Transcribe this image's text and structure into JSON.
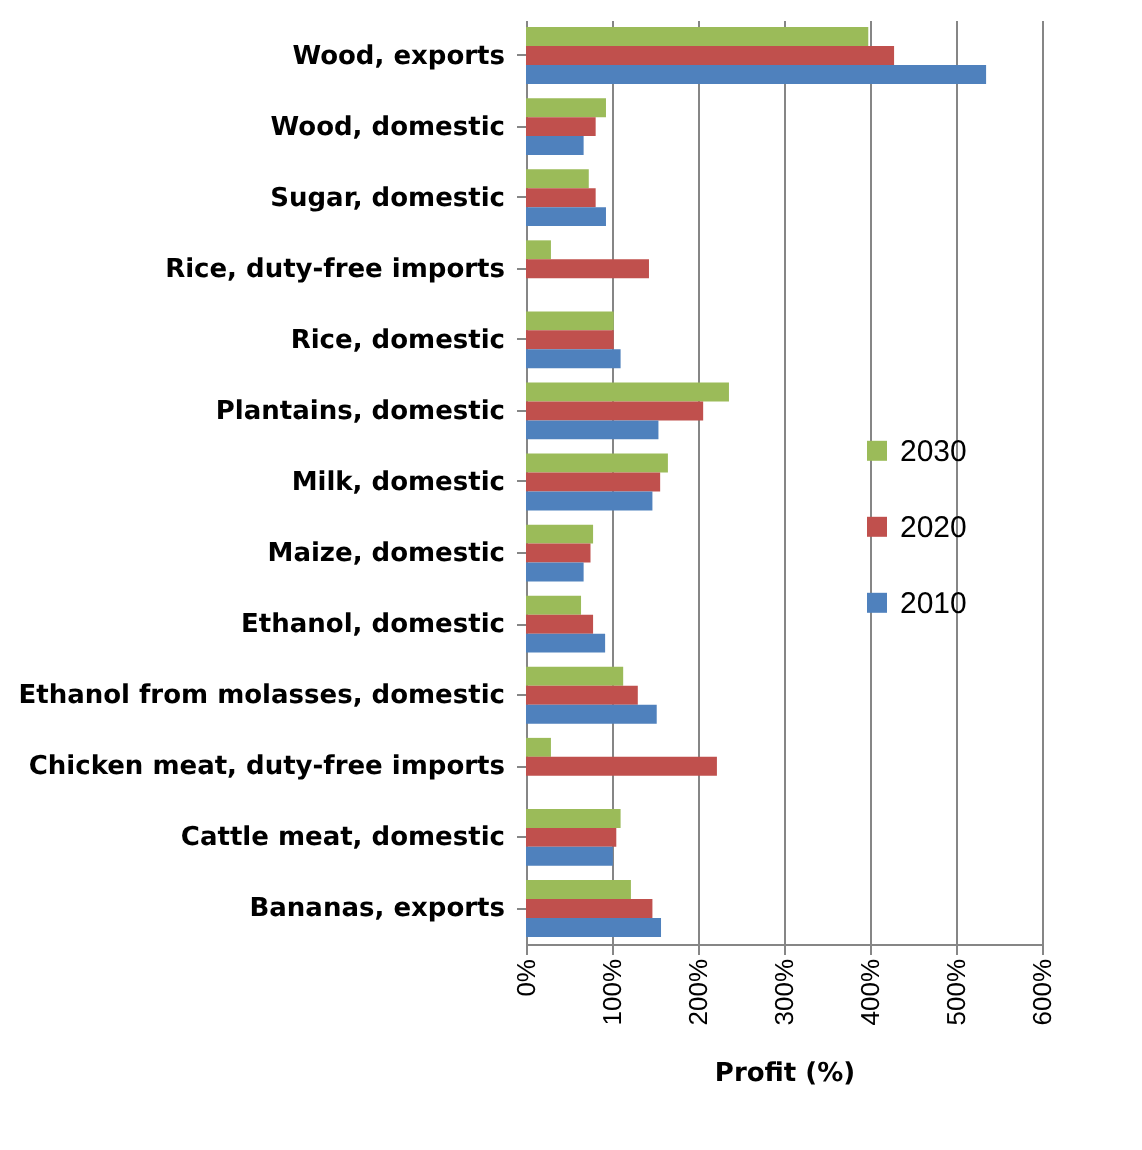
{
  "chart_data": {
    "type": "bar",
    "orientation": "horizontal",
    "xlabel": "Profit (%)",
    "categories": [
      "Wood, exports",
      "Wood, domestic",
      "Sugar, domestic",
      "Rice, duty-free imports",
      "Rice, domestic",
      "Plantains, domestic",
      "Milk, domestic",
      "Maize, domestic",
      "Ethanol, domestic",
      "Ethanol from molasses, domestic",
      "Chicken meat, duty-free imports",
      "Cattle meat, domestic",
      "Bananas, exports"
    ],
    "series": [
      {
        "name": "2030",
        "color": "#9bbb59",
        "values": [
          398,
          93,
          73,
          29,
          102,
          236,
          165,
          78,
          64,
          113,
          29,
          110,
          122
        ]
      },
      {
        "name": "2020",
        "color": "#c0504d",
        "values": [
          428,
          81,
          81,
          143,
          102,
          206,
          156,
          75,
          78,
          130,
          222,
          105,
          147
        ]
      },
      {
        "name": "2010",
        "color": "#4f81bd",
        "values": [
          535,
          67,
          93,
          null,
          110,
          154,
          147,
          67,
          92,
          152,
          null,
          101,
          157
        ]
      }
    ],
    "xlim": [
      0,
      600
    ],
    "xticks": [
      {
        "value": 0,
        "label": "0%"
      },
      {
        "value": 100,
        "label": "100%"
      },
      {
        "value": 200,
        "label": "200%"
      },
      {
        "value": 300,
        "label": "300%"
      },
      {
        "value": 400,
        "label": "400%"
      },
      {
        "value": 500,
        "label": "500%"
      },
      {
        "value": 600,
        "label": "600%"
      }
    ],
    "grid": "x",
    "legend": "right"
  }
}
